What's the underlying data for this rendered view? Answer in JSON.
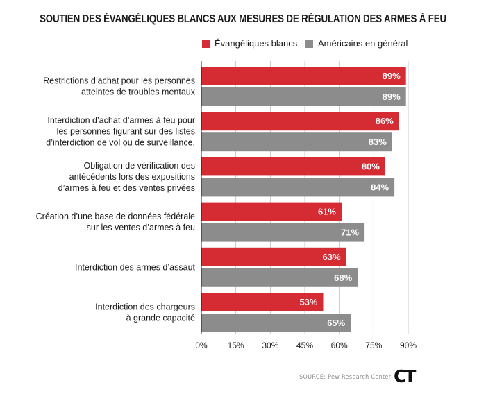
{
  "title": "SOUTIEN DES ÉVANGÉLIQUES BLANCS AUX MESURES DE RÉGULATION DES ARMES À FEU",
  "legend": [
    {
      "label": "Évangéliques blancs",
      "color": "#d52b33"
    },
    {
      "label": "Américains en général",
      "color": "#8c8c8c"
    }
  ],
  "source": "SOURCE: Pew Research Center",
  "logo": "CT",
  "chart_data": {
    "type": "bar",
    "orientation": "horizontal",
    "categories": [
      [
        "Restrictions d’achat pour les personnes",
        "atteintes de troubles mentaux"
      ],
      [
        "Interdiction d’achat d’armes à feu pour",
        "les personnes figurant sur des listes",
        "d’interdiction de vol ou de surveillance."
      ],
      [
        "Obligation de vérification des",
        "antécédents lors des expositions",
        "d’armes à feu et des ventes privées"
      ],
      [
        "Création d’une base de données fédérale",
        "sur les ventes d’armes à feu"
      ],
      [
        "Interdiction des armes d’assaut"
      ],
      [
        "Interdiction des chargeurs",
        "à grande capacité"
      ]
    ],
    "series": [
      {
        "name": "Évangéliques blancs",
        "color": "#d52b33",
        "values": [
          89,
          86,
          80,
          61,
          63,
          53
        ]
      },
      {
        "name": "Américains en général",
        "color": "#8c8c8c",
        "values": [
          89,
          83,
          84,
          71,
          68,
          65
        ]
      }
    ],
    "xlim": [
      0,
      90
    ],
    "xticks": [
      "0%",
      "15%",
      "30%",
      "45%",
      "60%",
      "75%",
      "90%"
    ],
    "xtick_values": [
      0,
      15,
      30,
      45,
      60,
      75,
      90
    ],
    "value_suffix": "%",
    "grid": "vertical",
    "legend_position": "top-right"
  }
}
